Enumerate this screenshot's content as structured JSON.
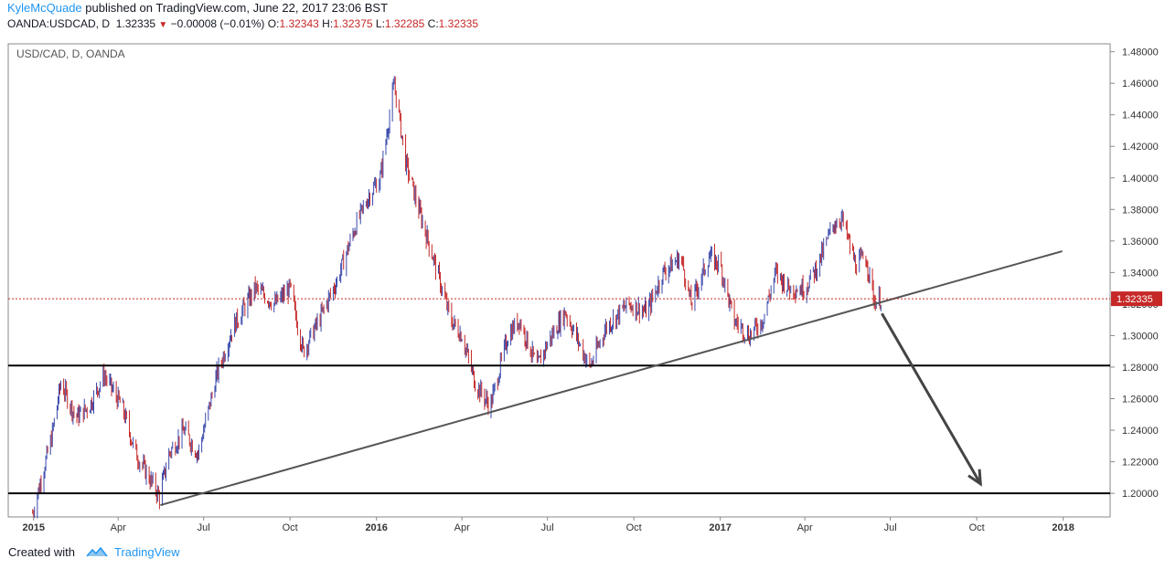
{
  "header": {
    "author": "KyleMcQuade",
    "published": " published on TradingView.com, June 22, 2017 23:06 BST",
    "symbol": "OANDA:USDCAD, D",
    "last": "1.32335",
    "change": "−0.00008 (−0.01%)",
    "o_label": "O:",
    "o_value": "1.32343",
    "h_label": "H:",
    "h_value": "1.32375",
    "l_label": "L:",
    "l_value": "1.32285",
    "c_label": "C:",
    "c_value": "1.32335"
  },
  "footer": {
    "created_with": "Created with",
    "brand": "TradingView"
  },
  "colors": {
    "up": "#3949ab",
    "down": "#c62828",
    "last_price": "#c62828",
    "line": "#555555"
  },
  "chart_data": {
    "type": "candlestick",
    "title": "USD/CAD, D, OANDA",
    "ylim": [
      1.185,
      1.485
    ],
    "y_ticks": [
      "1.48000",
      "1.46000",
      "1.44000",
      "1.42000",
      "1.40000",
      "1.38000",
      "1.36000",
      "1.34000",
      "1.32000",
      "1.30000",
      "1.28000",
      "1.26000",
      "1.24000",
      "1.22000",
      "1.20000"
    ],
    "x_ticks": [
      {
        "date": "2015-01-01",
        "label": "2015"
      },
      {
        "date": "2015-04-01",
        "label": "Apr"
      },
      {
        "date": "2015-07-01",
        "label": "Jul"
      },
      {
        "date": "2015-10-01",
        "label": "Oct"
      },
      {
        "date": "2016-01-01",
        "label": "2016"
      },
      {
        "date": "2016-04-01",
        "label": "Apr"
      },
      {
        "date": "2016-07-01",
        "label": "Jul"
      },
      {
        "date": "2016-10-01",
        "label": "Oct"
      },
      {
        "date": "2017-01-01",
        "label": "2017"
      },
      {
        "date": "2017-04-01",
        "label": "Apr"
      },
      {
        "date": "2017-07-01",
        "label": "Jul"
      },
      {
        "date": "2017-10-01",
        "label": "Oct"
      },
      {
        "date": "2018-01-01",
        "label": "2018"
      }
    ],
    "xlim": [
      "2014-12-05",
      "2018-02-20"
    ],
    "last_price": 1.32335,
    "last_price_label": "1.32335",
    "price_path": [
      [
        "2014-12-31",
        1.1875
      ],
      [
        "2015-01-20",
        1.235
      ],
      [
        "2015-01-30",
        1.27
      ],
      [
        "2015-02-15",
        1.248
      ],
      [
        "2015-03-01",
        1.255
      ],
      [
        "2015-03-17",
        1.275
      ],
      [
        "2015-04-05",
        1.255
      ],
      [
        "2015-04-20",
        1.225
      ],
      [
        "2015-05-15",
        1.198
      ],
      [
        "2015-05-25",
        1.225
      ],
      [
        "2015-06-10",
        1.24
      ],
      [
        "2015-06-25",
        1.225
      ],
      [
        "2015-07-15",
        1.275
      ],
      [
        "2015-08-01",
        1.305
      ],
      [
        "2015-08-25",
        1.33
      ],
      [
        "2015-09-15",
        1.32
      ],
      [
        "2015-10-01",
        1.33
      ],
      [
        "2015-10-15",
        1.29
      ],
      [
        "2015-11-01",
        1.31
      ],
      [
        "2015-11-20",
        1.335
      ],
      [
        "2015-12-10",
        1.37
      ],
      [
        "2015-12-25",
        1.39
      ],
      [
        "2016-01-05",
        1.4
      ],
      [
        "2016-01-20",
        1.46
      ],
      [
        "2016-02-01",
        1.41
      ],
      [
        "2016-02-15",
        1.38
      ],
      [
        "2016-03-01",
        1.35
      ],
      [
        "2016-03-20",
        1.31
      ],
      [
        "2016-04-01",
        1.3
      ],
      [
        "2016-04-15",
        1.27
      ],
      [
        "2016-05-01",
        1.255
      ],
      [
        "2016-05-20",
        1.3
      ],
      [
        "2016-06-01",
        1.31
      ],
      [
        "2016-06-20",
        1.28
      ],
      [
        "2016-07-01",
        1.295
      ],
      [
        "2016-07-20",
        1.315
      ],
      [
        "2016-08-15",
        1.28
      ],
      [
        "2016-09-01",
        1.305
      ],
      [
        "2016-09-25",
        1.32
      ],
      [
        "2016-10-15",
        1.315
      ],
      [
        "2016-11-01",
        1.34
      ],
      [
        "2016-11-20",
        1.35
      ],
      [
        "2016-12-01",
        1.32
      ],
      [
        "2016-12-20",
        1.35
      ],
      [
        "2017-01-01",
        1.345
      ],
      [
        "2017-01-15",
        1.31
      ],
      [
        "2017-02-01",
        1.3
      ],
      [
        "2017-02-15",
        1.31
      ],
      [
        "2017-03-01",
        1.34
      ],
      [
        "2017-03-15",
        1.33
      ],
      [
        "2017-04-01",
        1.33
      ],
      [
        "2017-04-15",
        1.345
      ],
      [
        "2017-05-01",
        1.37
      ],
      [
        "2017-05-10",
        1.375
      ],
      [
        "2017-05-25",
        1.345
      ],
      [
        "2017-06-05",
        1.35
      ],
      [
        "2017-06-14",
        1.322
      ],
      [
        "2017-06-22",
        1.3233
      ]
    ],
    "annotations": {
      "support_lines": [
        1.281,
        1.2
      ],
      "trendline": [
        [
          "2015-05-16",
          1.1925
        ],
        [
          "2017-12-31",
          1.3535
        ]
      ],
      "arrow": [
        [
          "2017-06-22",
          1.314
        ],
        [
          "2017-10-05",
          1.206
        ]
      ]
    }
  }
}
